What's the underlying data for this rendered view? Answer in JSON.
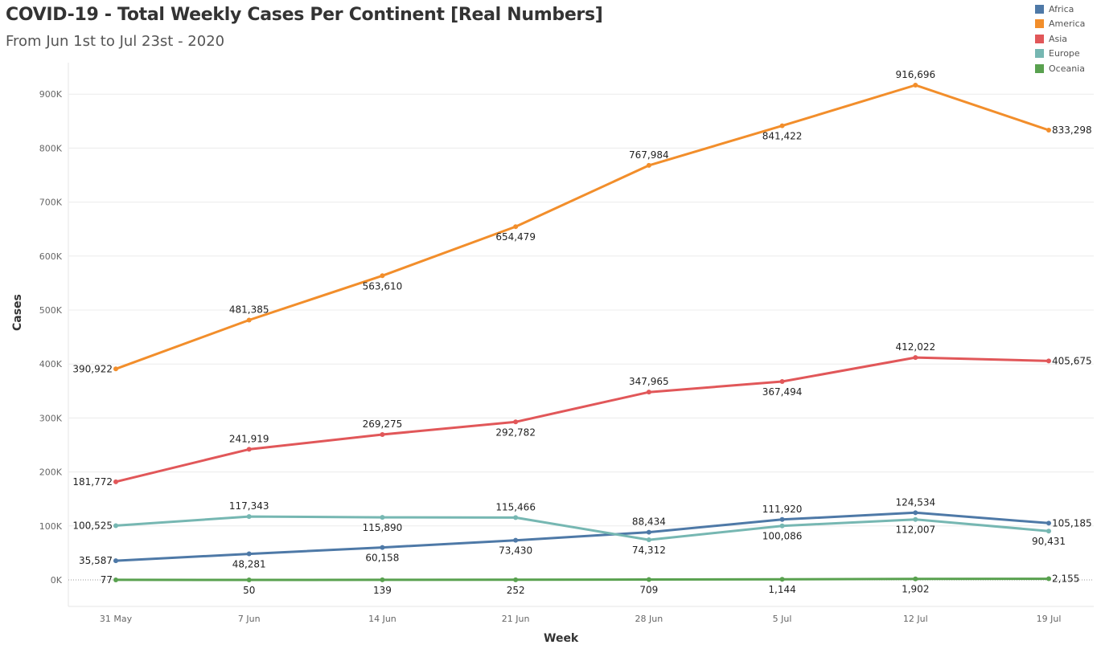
{
  "chart_data": {
    "type": "line",
    "title": "COVID-19 - Total Weekly Cases Per Continent [Real Numbers]",
    "subtitle": "From Jun 1st to Jul 23st - 2020",
    "xlabel": "Week",
    "ylabel": "Cases",
    "categories": [
      "31 May",
      "7 Jun",
      "14 Jun",
      "21 Jun",
      "28 Jun",
      "5 Jul",
      "12 Jul",
      "19 Jul"
    ],
    "ylim": [
      0,
      950000
    ],
    "yticks": [
      0,
      100000,
      200000,
      300000,
      400000,
      500000,
      600000,
      700000,
      800000,
      900000
    ],
    "ytick_labels": [
      "0K",
      "100K",
      "200K",
      "300K",
      "400K",
      "500K",
      "600K",
      "700K",
      "800K",
      "900K"
    ],
    "grid": true,
    "legend_position": "top-right",
    "series": [
      {
        "name": "Africa",
        "color": "#4e79a7",
        "values": [
          35587,
          48281,
          60158,
          73430,
          88434,
          111920,
          124534,
          105185
        ],
        "labels": [
          "35,587",
          "48,281",
          "60,158",
          "73,430",
          "88,434",
          "111,920",
          "124,534",
          "105,185"
        ]
      },
      {
        "name": "America",
        "color": "#f28e2b",
        "values": [
          390922,
          481385,
          563610,
          654479,
          767984,
          841422,
          916696,
          833298
        ],
        "labels": [
          "390,922",
          "481,385",
          "563,610",
          "654,479",
          "767,984",
          "841,422",
          "916,696",
          "833,298"
        ]
      },
      {
        "name": "Asia",
        "color": "#e15759",
        "values": [
          181772,
          241919,
          269275,
          292782,
          347965,
          367494,
          412022,
          405675
        ],
        "labels": [
          "181,772",
          "241,919",
          "269,275",
          "292,782",
          "347,965",
          "367,494",
          "412,022",
          "405,675"
        ]
      },
      {
        "name": "Europe",
        "color": "#76b7b2",
        "values": [
          100525,
          117343,
          115890,
          115466,
          74312,
          100086,
          112007,
          90431
        ],
        "labels": [
          "100,525",
          "117,343",
          "115,890",
          "115,466",
          "74,312",
          "100,086",
          "112,007",
          "90,431"
        ]
      },
      {
        "name": "Oceania",
        "color": "#59a14f",
        "values": [
          77,
          50,
          139,
          252,
          709,
          1144,
          1902,
          2155
        ],
        "labels": [
          "77",
          "50",
          "139",
          "252",
          "709",
          "1,144",
          "1,902",
          "2,155"
        ]
      }
    ]
  }
}
